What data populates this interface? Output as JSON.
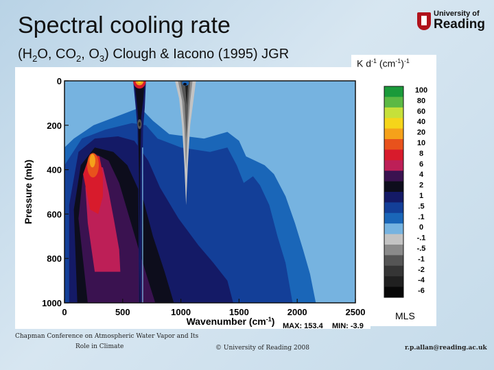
{
  "slide": {
    "title": "Spectral cooling rate",
    "subtitle_parts": [
      "(H",
      "2",
      "O, CO",
      "2",
      ", O",
      "3",
      ") Clough & Iacono (1995) JGR"
    ],
    "logo_line1": "University of",
    "logo_line2": "Reading",
    "colorbar_units": [
      "K d",
      "-1",
      " (cm",
      "-1",
      ")",
      "-1"
    ],
    "footer_left_1": "Chapman Conference on Atmospheric Water Vapor and Its",
    "footer_left_2": "Role in Climate",
    "footer_center": "© University of Reading 2008",
    "footer_right": "r.p.allan@reading.ac.uk"
  },
  "chart_data": {
    "type": "heatmap",
    "xlabel": "Wavenumber (cm",
    "xlabel_sup": "-1",
    "xlabel_end": ")",
    "ylabel": "Pressure (mb)",
    "x_ticks": [
      "0",
      "500",
      "1000",
      "1500",
      "2000",
      "2500"
    ],
    "y_ticks": [
      "0",
      "200",
      "400",
      "600",
      "800",
      "1000"
    ],
    "xlim": [
      0,
      2500
    ],
    "ylim": [
      1000,
      0
    ],
    "max_label": "MAX: 153.4",
    "min_label": "MIN:  -3.9",
    "profile_label": "MLS",
    "colorbar_levels": [
      "100",
      "80",
      "60",
      "40",
      "20",
      "10",
      "8",
      "6",
      "4",
      "2",
      "1",
      ".5",
      ".1",
      "0",
      "-.1",
      "-.5",
      "-1",
      "-2",
      "-4",
      "-6"
    ],
    "colorbar_colors": [
      "#1a9a3a",
      "#5bb944",
      "#c6e03a",
      "#f5d51a",
      "#f5a11a",
      "#e8521c",
      "#d81b2c",
      "#bd1f57",
      "#3a1250",
      "#0d0d1c",
      "#141a66",
      "#133f98",
      "#1a66b8",
      "#76b3e0",
      "#c3c3c3",
      "#8a8a8a",
      "#555555",
      "#353535",
      "#202020",
      "#080808"
    ],
    "background_level_color": "#76b3e0"
  }
}
